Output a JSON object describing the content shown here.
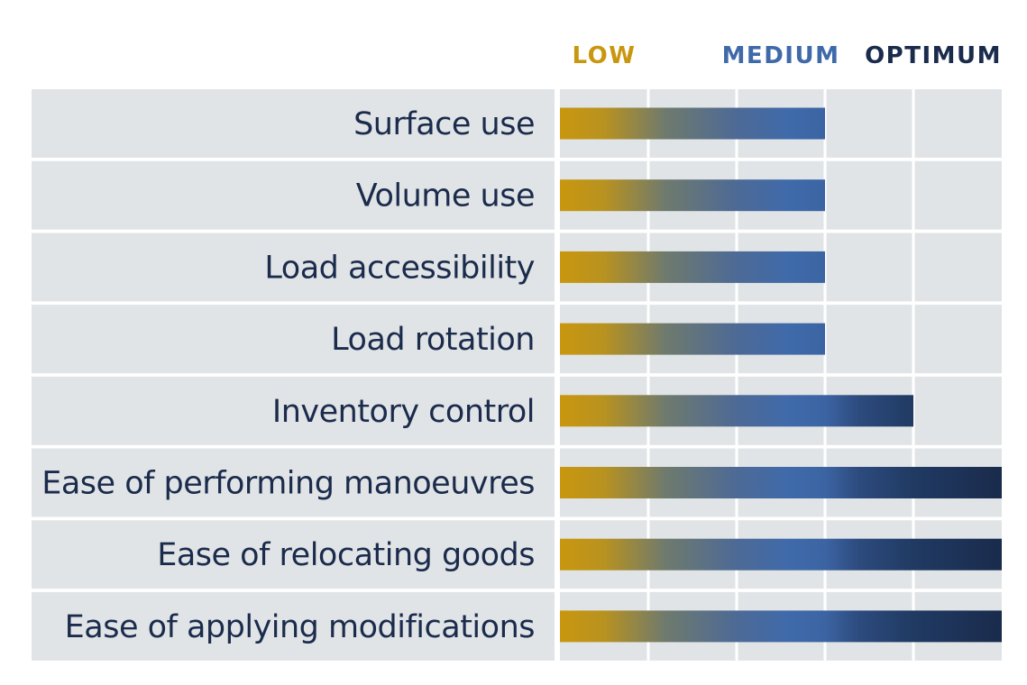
{
  "chart_data": {
    "type": "bar",
    "orientation": "horizontal",
    "scale": {
      "levels": [
        {
          "label": "LOW",
          "color": "#c9970f"
        },
        {
          "label": "MEDIUM",
          "color": "#3f6aaa"
        },
        {
          "label": "OPTIMUM",
          "color": "#1a2b4c"
        }
      ],
      "min": 0,
      "max": 5,
      "level_positions": [
        0.5,
        2.5,
        4.5
      ]
    },
    "categories": [
      "Surface use",
      "Volume use",
      "Load accessibility",
      "Load rotation",
      "Inventory control",
      "Ease of performing manoeuvres",
      "Ease of relocating goods",
      "Ease of applying modifications"
    ],
    "values": [
      3,
      3,
      3,
      3,
      4,
      5,
      5,
      5
    ],
    "grid": true,
    "colors": {
      "row_background": "#e1e4e6",
      "grid_line": "#ffffff",
      "label_text": "#1a2b4c"
    }
  }
}
